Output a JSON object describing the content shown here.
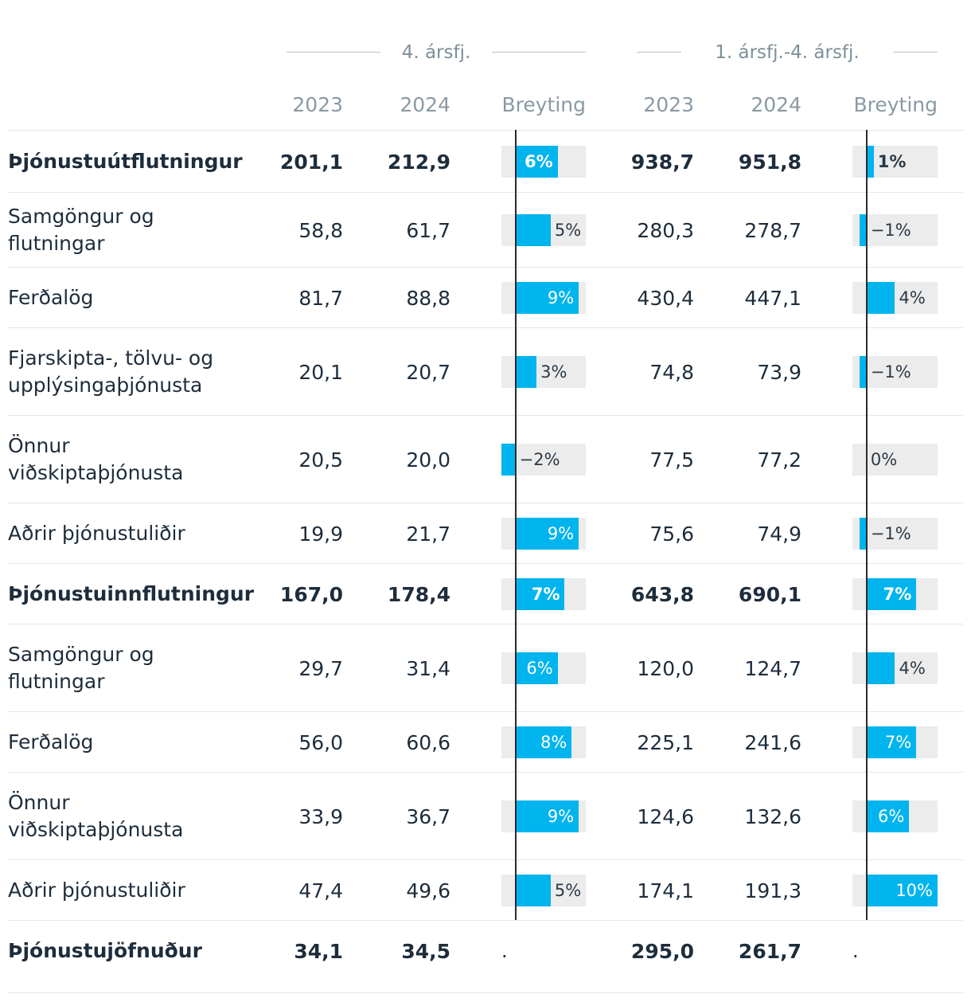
{
  "chart_data": {
    "type": "table",
    "column_groups": [
      {
        "label": "4. ársfj.",
        "columns": [
          "2023",
          "2024",
          "Breyting"
        ]
      },
      {
        "label": "1. ársfj.-4. ársfj.",
        "columns": [
          "2023",
          "2024",
          "Breyting"
        ]
      }
    ],
    "bar_scale": {
      "min_pct": -2,
      "max_pct": 10
    },
    "rows": [
      {
        "label": "Þjónustuútflutningur",
        "bold": true,
        "q4": {
          "y2023": "201,1",
          "y2024": "212,9",
          "change": 6,
          "change_label": "6%"
        },
        "ytd": {
          "y2023": "938,7",
          "y2024": "951,8",
          "change": 1,
          "change_label": "1%"
        }
      },
      {
        "label": "Samgöngur og flutningar",
        "bold": false,
        "q4": {
          "y2023": "58,8",
          "y2024": "61,7",
          "change": 5,
          "change_label": "5%"
        },
        "ytd": {
          "y2023": "280,3",
          "y2024": "278,7",
          "change": -1,
          "change_label": "−1%"
        }
      },
      {
        "label": "Ferðalög",
        "bold": false,
        "q4": {
          "y2023": "81,7",
          "y2024": "88,8",
          "change": 9,
          "change_label": "9%"
        },
        "ytd": {
          "y2023": "430,4",
          "y2024": "447,1",
          "change": 4,
          "change_label": "4%"
        }
      },
      {
        "label": "Fjarskipta-, tölvu- og upplýsingaþjónusta",
        "bold": false,
        "q4": {
          "y2023": "20,1",
          "y2024": "20,7",
          "change": 3,
          "change_label": "3%"
        },
        "ytd": {
          "y2023": "74,8",
          "y2024": "73,9",
          "change": -1,
          "change_label": "−1%"
        }
      },
      {
        "label": "Önnur viðskiptaþjónusta",
        "bold": false,
        "q4": {
          "y2023": "20,5",
          "y2024": "20,0",
          "change": -2,
          "change_label": "−2%"
        },
        "ytd": {
          "y2023": "77,5",
          "y2024": "77,2",
          "change": 0,
          "change_label": "0%"
        }
      },
      {
        "label": "Aðrir þjónustuliðir",
        "bold": false,
        "q4": {
          "y2023": "19,9",
          "y2024": "21,7",
          "change": 9,
          "change_label": "9%"
        },
        "ytd": {
          "y2023": "75,6",
          "y2024": "74,9",
          "change": -1,
          "change_label": "−1%"
        }
      },
      {
        "label": "Þjónustuinnflutningur",
        "bold": true,
        "q4": {
          "y2023": "167,0",
          "y2024": "178,4",
          "change": 7,
          "change_label": "7%"
        },
        "ytd": {
          "y2023": "643,8",
          "y2024": "690,1",
          "change": 7,
          "change_label": "7%"
        }
      },
      {
        "label": "Samgöngur og flutningar",
        "bold": false,
        "q4": {
          "y2023": "29,7",
          "y2024": "31,4",
          "change": 6,
          "change_label": "6%"
        },
        "ytd": {
          "y2023": "120,0",
          "y2024": "124,7",
          "change": 4,
          "change_label": "4%"
        }
      },
      {
        "label": "Ferðalög",
        "bold": false,
        "q4": {
          "y2023": "56,0",
          "y2024": "60,6",
          "change": 8,
          "change_label": "8%"
        },
        "ytd": {
          "y2023": "225,1",
          "y2024": "241,6",
          "change": 7,
          "change_label": "7%"
        }
      },
      {
        "label": "Önnur viðskiptaþjónusta",
        "bold": false,
        "q4": {
          "y2023": "33,9",
          "y2024": "36,7",
          "change": 9,
          "change_label": "9%"
        },
        "ytd": {
          "y2023": "124,6",
          "y2024": "132,6",
          "change": 6,
          "change_label": "6%"
        }
      },
      {
        "label": "Aðrir þjónustuliðir",
        "bold": false,
        "q4": {
          "y2023": "47,4",
          "y2024": "49,6",
          "change": 5,
          "change_label": "5%"
        },
        "ytd": {
          "y2023": "174,1",
          "y2024": "191,3",
          "change": 10,
          "change_label": "10%"
        }
      },
      {
        "label": "Þjónustujöfnuður",
        "bold": true,
        "q4": {
          "y2023": "34,1",
          "y2024": "34,5",
          "change": null,
          "change_label": "."
        },
        "ytd": {
          "y2023": "295,0",
          "y2024": "261,7",
          "change": null,
          "change_label": "."
        }
      }
    ]
  },
  "colors": {
    "bar": "#00b4ee",
    "bar_background": "#ececec",
    "zero_line": "#2b2b2b"
  }
}
